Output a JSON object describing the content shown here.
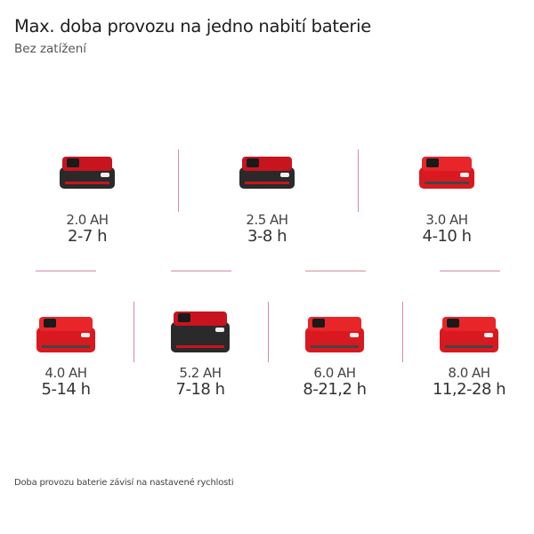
{
  "header": {
    "title": "Max. doba provozu na jedno nabití baterie",
    "subtitle": "Bez zatížení"
  },
  "batteries": [
    {
      "capacity": "2.0 AH",
      "runtime": "2-7 h",
      "body_color": "#2a2a2a",
      "top_color": "#c8141e"
    },
    {
      "capacity": "2.5 AH",
      "runtime": "3-8 h",
      "body_color": "#2a2a2a",
      "top_color": "#c8141e"
    },
    {
      "capacity": "3.0 AH",
      "runtime": "4-10 h",
      "body_color": "#d8191f",
      "top_color": "#e8262a"
    },
    {
      "capacity": "4.0 AH",
      "runtime": "5-14 h",
      "body_color": "#d8191f",
      "top_color": "#e8262a"
    },
    {
      "capacity": "5.2 AH",
      "runtime": "7-18 h",
      "body_color": "#2a2a2a",
      "top_color": "#c8141e"
    },
    {
      "capacity": "6.0 AH",
      "runtime": "8-21,2 h",
      "body_color": "#d8191f",
      "top_color": "#e8262a"
    },
    {
      "capacity": "8.0 AH",
      "runtime": "11,2-28 h",
      "body_color": "#d8191f",
      "top_color": "#e8262a"
    }
  ],
  "footnote": "Doba provozu baterie závisí na nastavené rychlosti",
  "colors": {
    "divider": "#d98a9a",
    "accent": "#c8141e"
  }
}
